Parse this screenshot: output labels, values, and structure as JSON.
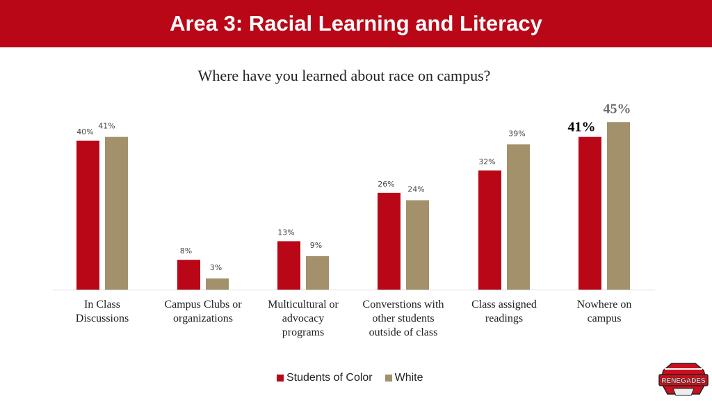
{
  "slide": {
    "title": "Area 3: Racial Learning and Literacy",
    "colors": {
      "banner": "#b90718",
      "students_of_color": "#b90718",
      "white": "#a2916b"
    }
  },
  "chart_data": {
    "type": "bar",
    "title": "Where have you learned about race on campus?",
    "categories": [
      "In Class\nDiscussions",
      "Campus Clubs or\norganizations",
      "Multicultural or\nadvocacy\nprograms",
      "Converstions with\nother students\noutside of class",
      "Class assigned\nreadings",
      "Nowhere on\ncampus"
    ],
    "series": [
      {
        "name": "Students of Color",
        "values": [
          40,
          8,
          13,
          26,
          32,
          41
        ],
        "labels": [
          "40%",
          "8%",
          "13%",
          "26%",
          "32%",
          "41%"
        ]
      },
      {
        "name": "White",
        "values": [
          41,
          3,
          9,
          24,
          39,
          45
        ],
        "labels": [
          "41%",
          "3%",
          "9%",
          "24%",
          "39%",
          "45%"
        ]
      }
    ],
    "ylim": [
      0,
      45
    ],
    "grid": false,
    "legend": "bottom",
    "highlighted_category": "Nowhere on\ncampus"
  },
  "logo": {
    "text": "RENEGADES"
  }
}
